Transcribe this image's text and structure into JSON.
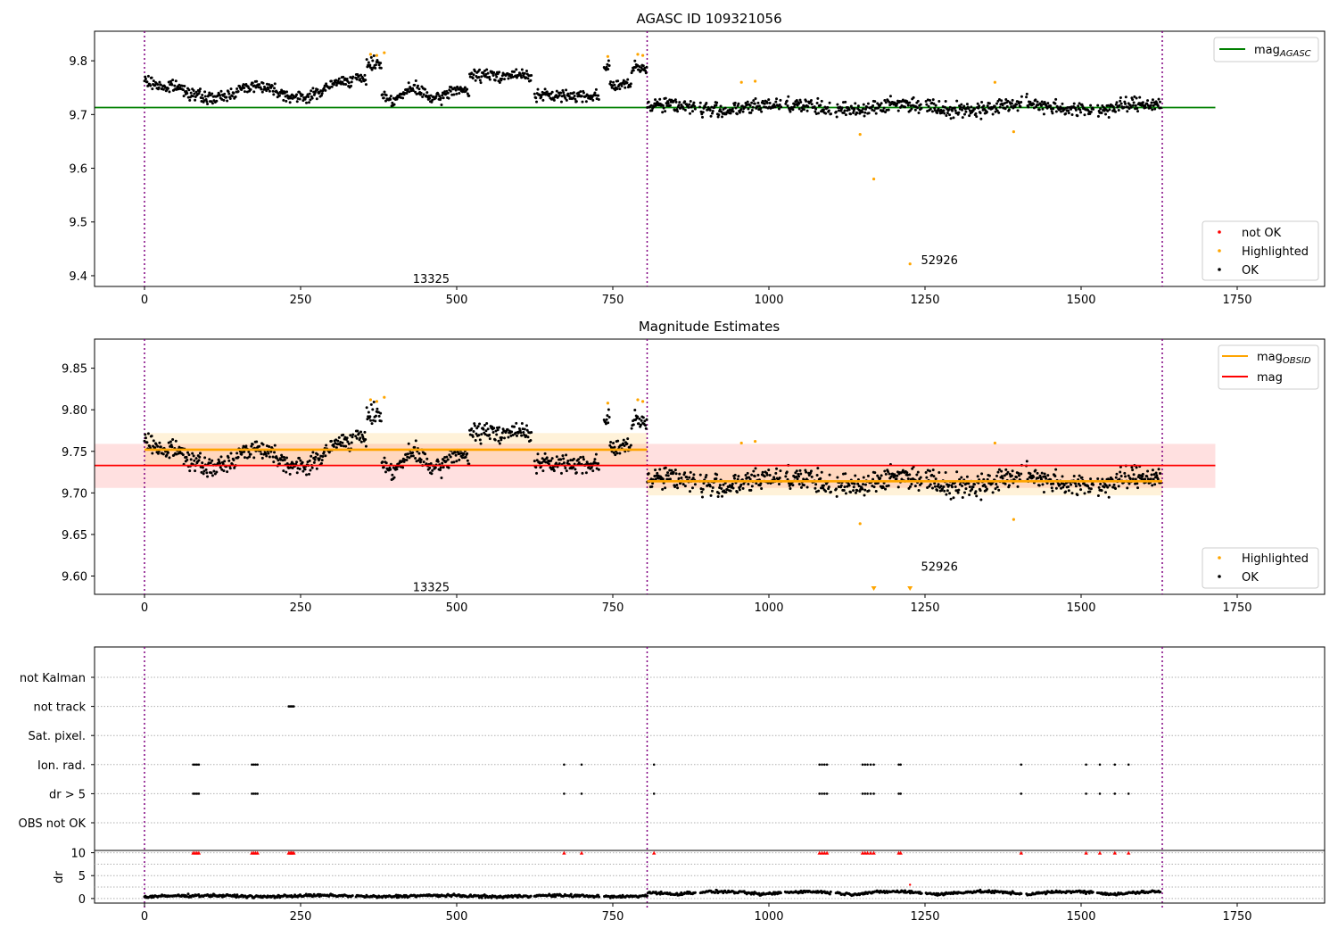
{
  "chart_data": [
    {
      "type": "scatter",
      "title": "AGASC ID 109321056",
      "xlim": [
        -80,
        1890
      ],
      "ylim": [
        9.38,
        9.855
      ],
      "xticks": [
        0,
        250,
        500,
        750,
        1000,
        1250,
        1500,
        1750
      ],
      "yticks": [
        9.4,
        9.5,
        9.6,
        9.7,
        9.8
      ],
      "obs_boundaries": [
        0,
        805,
        1630
      ],
      "obs_labels": [
        {
          "text": "13325",
          "x": 402,
          "y": 9.395
        },
        {
          "text": "52926",
          "x": 1216,
          "y": 9.43
        }
      ],
      "reference_line": {
        "name": "mag_AGASC",
        "y": 9.713,
        "x_range": [
          -80,
          1715
        ],
        "color": "#008000"
      },
      "legend_upper": [
        {
          "label": "mag",
          "sub": "AGASC",
          "color": "#008000"
        }
      ],
      "legend_lower": [
        {
          "label": "not OK",
          "color": "#ff0000"
        },
        {
          "label": "Highlighted",
          "color": "#ffa500"
        },
        {
          "label": "OK",
          "color": "#000000"
        }
      ],
      "highlighted": [
        [
          362,
          9.812
        ],
        [
          372,
          9.81
        ],
        [
          384,
          9.815
        ],
        [
          742,
          9.808
        ],
        [
          790,
          9.812
        ],
        [
          798,
          9.81
        ],
        [
          956,
          9.76
        ],
        [
          978,
          9.762
        ],
        [
          1146,
          9.663
        ],
        [
          1168,
          9.58
        ],
        [
          1226,
          9.422
        ],
        [
          1362,
          9.76
        ],
        [
          1392,
          9.668
        ]
      ]
    },
    {
      "type": "scatter",
      "title": "Magnitude Estimates",
      "xlim": [
        -80,
        1890
      ],
      "ylim": [
        9.578,
        9.885
      ],
      "xticks": [
        0,
        250,
        500,
        750,
        1000,
        1250,
        1500,
        1750
      ],
      "yticks": [
        9.6,
        9.65,
        9.7,
        9.75,
        9.8,
        9.85
      ],
      "ytick_labels": [
        "9.60",
        "9.65",
        "9.70",
        "9.75",
        "9.80",
        "9.85"
      ],
      "obs_boundaries": [
        0,
        805,
        1630
      ],
      "obs_labels": [
        {
          "text": "13325",
          "x": 402,
          "y": 9.587
        },
        {
          "text": "52926",
          "x": 1216,
          "y": 9.612
        }
      ],
      "mag_line": {
        "name": "mag",
        "y": 9.733,
        "band": [
          9.706,
          9.759
        ],
        "x_range": [
          -80,
          1715
        ],
        "color": "#ff0000"
      },
      "mag_obsid_segments": [
        {
          "x": [
            0,
            805
          ],
          "y": 9.752,
          "band": [
            9.733,
            9.772
          ]
        },
        {
          "x": [
            805,
            1630
          ],
          "y": 9.714,
          "band": [
            9.697,
            9.731
          ]
        }
      ],
      "legend_upper": [
        {
          "label": "mag",
          "sub": "OBSID",
          "color": "#ffa500"
        },
        {
          "label": "mag",
          "sub": "",
          "color": "#ff0000"
        }
      ],
      "legend_lower": [
        {
          "label": "Highlighted",
          "color": "#ffa500"
        },
        {
          "label": "OK",
          "color": "#000000"
        }
      ],
      "highlighted": [
        [
          362,
          9.812
        ],
        [
          372,
          9.81
        ],
        [
          384,
          9.815
        ],
        [
          742,
          9.808
        ],
        [
          790,
          9.812
        ],
        [
          798,
          9.81
        ],
        [
          956,
          9.76
        ],
        [
          978,
          9.762
        ],
        [
          1146,
          9.663
        ],
        [
          1362,
          9.76
        ],
        [
          1392,
          9.668
        ]
      ],
      "below_range_markers": [
        1168,
        1226
      ]
    },
    {
      "type": "scatter",
      "categories": [
        "not Kalman",
        "not track",
        "Sat. pixel.",
        "Ion. rad.",
        "dr > 5",
        "OBS not OK"
      ],
      "xlim": [
        -80,
        1890
      ],
      "events": {
        "not track": [
          231,
          233,
          235,
          237,
          239
        ],
        "Ion. rad.": [
          78,
          81,
          84,
          87,
          172,
          175,
          178,
          181,
          672,
          700,
          816,
          1081,
          1085,
          1089,
          1093,
          1150,
          1154,
          1158,
          1163,
          1168,
          1208,
          1211,
          1404,
          1508,
          1530,
          1554,
          1576
        ],
        "dr > 5": [
          78,
          81,
          84,
          87,
          172,
          175,
          178,
          181,
          672,
          700,
          816,
          1081,
          1085,
          1089,
          1093,
          1150,
          1154,
          1158,
          1163,
          1168,
          1208,
          1211,
          1404,
          1508,
          1530,
          1554,
          1576
        ]
      },
      "dr_panel": {
        "ylabel": "dr",
        "yticks": [
          0,
          5,
          10
        ],
        "ylim": [
          -1,
          10.5
        ],
        "capped_markers": [
          78,
          81,
          84,
          87,
          172,
          175,
          178,
          181,
          231,
          233,
          235,
          237,
          239,
          672,
          700,
          816,
          1081,
          1085,
          1089,
          1093,
          1150,
          1154,
          1158,
          1163,
          1168,
          1208,
          1211,
          1404,
          1508,
          1530,
          1554,
          1576
        ],
        "outlier": [
          1226,
          3
        ]
      },
      "xticks": [
        0,
        250,
        500,
        750,
        1000,
        1250,
        1500,
        1750
      ]
    }
  ]
}
